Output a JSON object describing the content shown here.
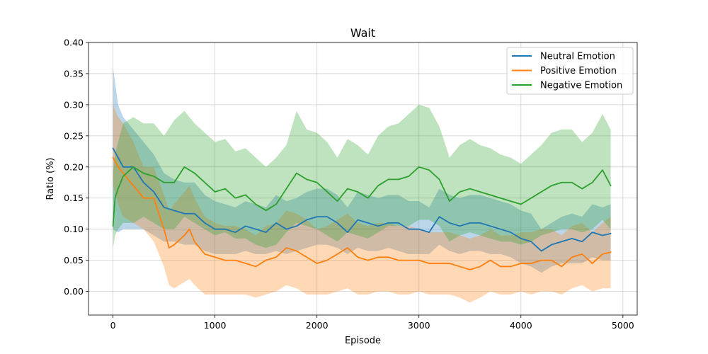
{
  "chart_data": {
    "type": "line",
    "title": "Wait",
    "xlabel": "Episode",
    "ylabel": "Ratio (%)",
    "xlim": [
      -240,
      5140
    ],
    "ylim": [
      -0.038,
      0.4
    ],
    "xticks": [
      0,
      1000,
      2000,
      3000,
      4000,
      5000
    ],
    "xtick_labels": [
      "0",
      "1000",
      "2000",
      "3000",
      "4000",
      "5000"
    ],
    "yticks": [
      0.0,
      0.05,
      0.1,
      0.15,
      0.2,
      0.25,
      0.3,
      0.35,
      0.4
    ],
    "ytick_labels": [
      "0.00",
      "0.05",
      "0.10",
      "0.15",
      "0.20",
      "0.25",
      "0.30",
      "0.35",
      "0.40"
    ],
    "grid": true,
    "legend_position": "top-right",
    "series": [
      {
        "name": "Neutral Emotion",
        "color": "#1f77b4",
        "x": [
          0,
          50,
          100,
          200,
          300,
          400,
          500,
          600,
          700,
          800,
          900,
          1000,
          1100,
          1200,
          1300,
          1400,
          1500,
          1600,
          1700,
          1800,
          1900,
          2000,
          2100,
          2200,
          2300,
          2400,
          2500,
          2600,
          2700,
          2800,
          2900,
          3000,
          3100,
          3200,
          3300,
          3400,
          3500,
          3600,
          3700,
          3800,
          3900,
          4000,
          4100,
          4200,
          4300,
          4400,
          4500,
          4600,
          4700,
          4800,
          4880
        ],
        "y": [
          0.23,
          0.215,
          0.2,
          0.2,
          0.175,
          0.16,
          0.135,
          0.13,
          0.125,
          0.125,
          0.11,
          0.1,
          0.1,
          0.095,
          0.105,
          0.1,
          0.095,
          0.11,
          0.1,
          0.105,
          0.115,
          0.12,
          0.12,
          0.11,
          0.095,
          0.115,
          0.11,
          0.105,
          0.11,
          0.11,
          0.1,
          0.1,
          0.095,
          0.12,
          0.11,
          0.105,
          0.11,
          0.11,
          0.105,
          0.1,
          0.095,
          0.085,
          0.08,
          0.065,
          0.075,
          0.08,
          0.085,
          0.08,
          0.095,
          0.09,
          0.093
        ],
        "lower": [
          0.1,
          0.095,
          0.1,
          0.1,
          0.1,
          0.09,
          0.08,
          0.08,
          0.075,
          0.075,
          0.065,
          0.06,
          0.06,
          0.06,
          0.065,
          0.06,
          0.06,
          0.065,
          0.06,
          0.065,
          0.07,
          0.075,
          0.075,
          0.07,
          0.06,
          0.07,
          0.065,
          0.065,
          0.07,
          0.065,
          0.06,
          0.06,
          0.06,
          0.075,
          0.065,
          0.06,
          0.065,
          0.065,
          0.06,
          0.06,
          0.055,
          0.045,
          0.04,
          0.03,
          0.04,
          0.045,
          0.045,
          0.045,
          0.055,
          0.05,
          0.05
        ],
        "upper": [
          0.36,
          0.3,
          0.28,
          0.26,
          0.24,
          0.22,
          0.19,
          0.18,
          0.175,
          0.175,
          0.155,
          0.145,
          0.14,
          0.135,
          0.145,
          0.14,
          0.135,
          0.155,
          0.145,
          0.15,
          0.16,
          0.165,
          0.165,
          0.155,
          0.135,
          0.16,
          0.155,
          0.15,
          0.155,
          0.155,
          0.145,
          0.145,
          0.135,
          0.165,
          0.155,
          0.15,
          0.155,
          0.155,
          0.15,
          0.145,
          0.14,
          0.13,
          0.125,
          0.1,
          0.11,
          0.12,
          0.125,
          0.12,
          0.14,
          0.135,
          0.14
        ]
      },
      {
        "name": "Positive Emotion",
        "color": "#ff7f0e",
        "x": [
          0,
          50,
          100,
          200,
          300,
          400,
          500,
          550,
          600,
          700,
          750,
          800,
          900,
          1000,
          1100,
          1200,
          1300,
          1400,
          1500,
          1600,
          1700,
          1800,
          1900,
          2000,
          2100,
          2200,
          2300,
          2400,
          2500,
          2600,
          2700,
          2800,
          2900,
          3000,
          3100,
          3200,
          3300,
          3400,
          3500,
          3600,
          3700,
          3800,
          3900,
          4000,
          4100,
          4200,
          4300,
          4400,
          4500,
          4600,
          4700,
          4800,
          4880
        ],
        "y": [
          0.215,
          0.2,
          0.19,
          0.17,
          0.15,
          0.15,
          0.1,
          0.07,
          0.075,
          0.09,
          0.1,
          0.08,
          0.06,
          0.055,
          0.05,
          0.05,
          0.045,
          0.04,
          0.05,
          0.055,
          0.07,
          0.065,
          0.055,
          0.045,
          0.05,
          0.06,
          0.07,
          0.055,
          0.05,
          0.055,
          0.055,
          0.05,
          0.05,
          0.05,
          0.045,
          0.045,
          0.045,
          0.04,
          0.035,
          0.04,
          0.05,
          0.04,
          0.04,
          0.045,
          0.045,
          0.05,
          0.05,
          0.04,
          0.055,
          0.06,
          0.045,
          0.06,
          0.063
        ],
        "lower": [
          0.17,
          0.14,
          0.12,
          0.11,
          0.1,
          0.08,
          0.04,
          0.01,
          0.005,
          0.015,
          0.02,
          0.01,
          -0.005,
          -0.005,
          -0.005,
          -0.005,
          -0.005,
          -0.01,
          -0.005,
          0.0,
          0.01,
          0.005,
          -0.005,
          -0.005,
          -0.005,
          0.0,
          0.005,
          -0.005,
          -0.005,
          0.0,
          0.0,
          -0.005,
          -0.005,
          0.0,
          -0.005,
          -0.005,
          -0.005,
          -0.01,
          -0.018,
          -0.01,
          0.0,
          -0.005,
          -0.005,
          0.0,
          -0.005,
          0.0,
          0.0,
          -0.005,
          0.005,
          0.01,
          0.0,
          0.005,
          0.005
        ],
        "upper": [
          0.3,
          0.28,
          0.27,
          0.24,
          0.2,
          0.2,
          0.155,
          0.13,
          0.14,
          0.16,
          0.17,
          0.15,
          0.12,
          0.11,
          0.105,
          0.105,
          0.1,
          0.09,
          0.105,
          0.11,
          0.13,
          0.125,
          0.115,
          0.1,
          0.105,
          0.115,
          0.125,
          0.11,
          0.105,
          0.11,
          0.11,
          0.105,
          0.105,
          0.1,
          0.095,
          0.095,
          0.095,
          0.09,
          0.085,
          0.09,
          0.1,
          0.09,
          0.09,
          0.095,
          0.095,
          0.1,
          0.1,
          0.09,
          0.105,
          0.11,
          0.095,
          0.11,
          0.12
        ]
      },
      {
        "name": "Negative Emotion",
        "color": "#2ca02c",
        "x": [
          0,
          20,
          50,
          100,
          200,
          300,
          400,
          500,
          600,
          700,
          800,
          900,
          1000,
          1100,
          1200,
          1300,
          1400,
          1500,
          1600,
          1700,
          1800,
          1900,
          2000,
          2100,
          2200,
          2300,
          2400,
          2500,
          2600,
          2700,
          2800,
          2900,
          3000,
          3100,
          3200,
          3300,
          3400,
          3500,
          3600,
          3700,
          3800,
          3900,
          4000,
          4100,
          4200,
          4300,
          4400,
          4500,
          4600,
          4700,
          4800,
          4880
        ],
        "y": [
          0.105,
          0.15,
          0.165,
          0.185,
          0.2,
          0.19,
          0.185,
          0.175,
          0.175,
          0.2,
          0.19,
          0.175,
          0.16,
          0.165,
          0.15,
          0.155,
          0.14,
          0.13,
          0.14,
          0.165,
          0.19,
          0.18,
          0.175,
          0.16,
          0.145,
          0.165,
          0.16,
          0.15,
          0.17,
          0.18,
          0.18,
          0.185,
          0.2,
          0.195,
          0.18,
          0.145,
          0.16,
          0.165,
          0.16,
          0.155,
          0.15,
          0.145,
          0.14,
          0.15,
          0.16,
          0.17,
          0.175,
          0.175,
          0.165,
          0.175,
          0.195,
          0.17
        ],
        "lower": [
          0.07,
          0.09,
          0.1,
          0.11,
          0.11,
          0.12,
          0.11,
          0.1,
          0.1,
          0.12,
          0.11,
          0.1,
          0.09,
          0.095,
          0.085,
          0.085,
          0.075,
          0.07,
          0.075,
          0.095,
          0.11,
          0.105,
          0.1,
          0.09,
          0.08,
          0.095,
          0.09,
          0.085,
          0.095,
          0.105,
          0.105,
          0.105,
          0.115,
          0.115,
          0.105,
          0.08,
          0.09,
          0.095,
          0.09,
          0.085,
          0.08,
          0.08,
          0.075,
          0.08,
          0.09,
          0.095,
          0.1,
          0.1,
          0.095,
          0.1,
          0.115,
          0.1
        ],
        "upper": [
          0.19,
          0.22,
          0.24,
          0.27,
          0.28,
          0.27,
          0.27,
          0.25,
          0.275,
          0.29,
          0.27,
          0.255,
          0.24,
          0.245,
          0.225,
          0.23,
          0.215,
          0.2,
          0.215,
          0.235,
          0.29,
          0.26,
          0.255,
          0.24,
          0.215,
          0.245,
          0.235,
          0.22,
          0.25,
          0.265,
          0.27,
          0.285,
          0.3,
          0.295,
          0.265,
          0.215,
          0.235,
          0.245,
          0.235,
          0.23,
          0.22,
          0.215,
          0.205,
          0.22,
          0.235,
          0.255,
          0.26,
          0.26,
          0.24,
          0.255,
          0.285,
          0.26
        ]
      }
    ]
  }
}
